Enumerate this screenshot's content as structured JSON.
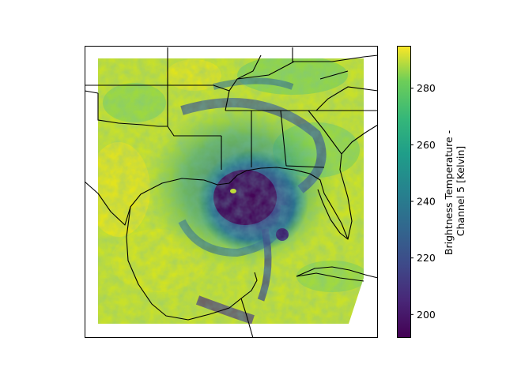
{
  "map": {
    "region": "Gulf of Mexico and southeastern United States",
    "feature": "hurricane",
    "coastline_color": "#000000",
    "state_border_color": "#000000"
  },
  "colorbar": {
    "label_line1": "Brightness Temperature -",
    "label_line2": "Channel 5 [Kelvin]",
    "ticks": [
      "200",
      "220",
      "240",
      "260",
      "280"
    ],
    "tick_values": [
      200,
      220,
      240,
      260,
      280
    ],
    "vmin": 192,
    "vmax": 295,
    "colormap": "viridis",
    "colors": [
      "#440154",
      "#3b528b",
      "#21918c",
      "#5ec962",
      "#fde725"
    ]
  }
}
